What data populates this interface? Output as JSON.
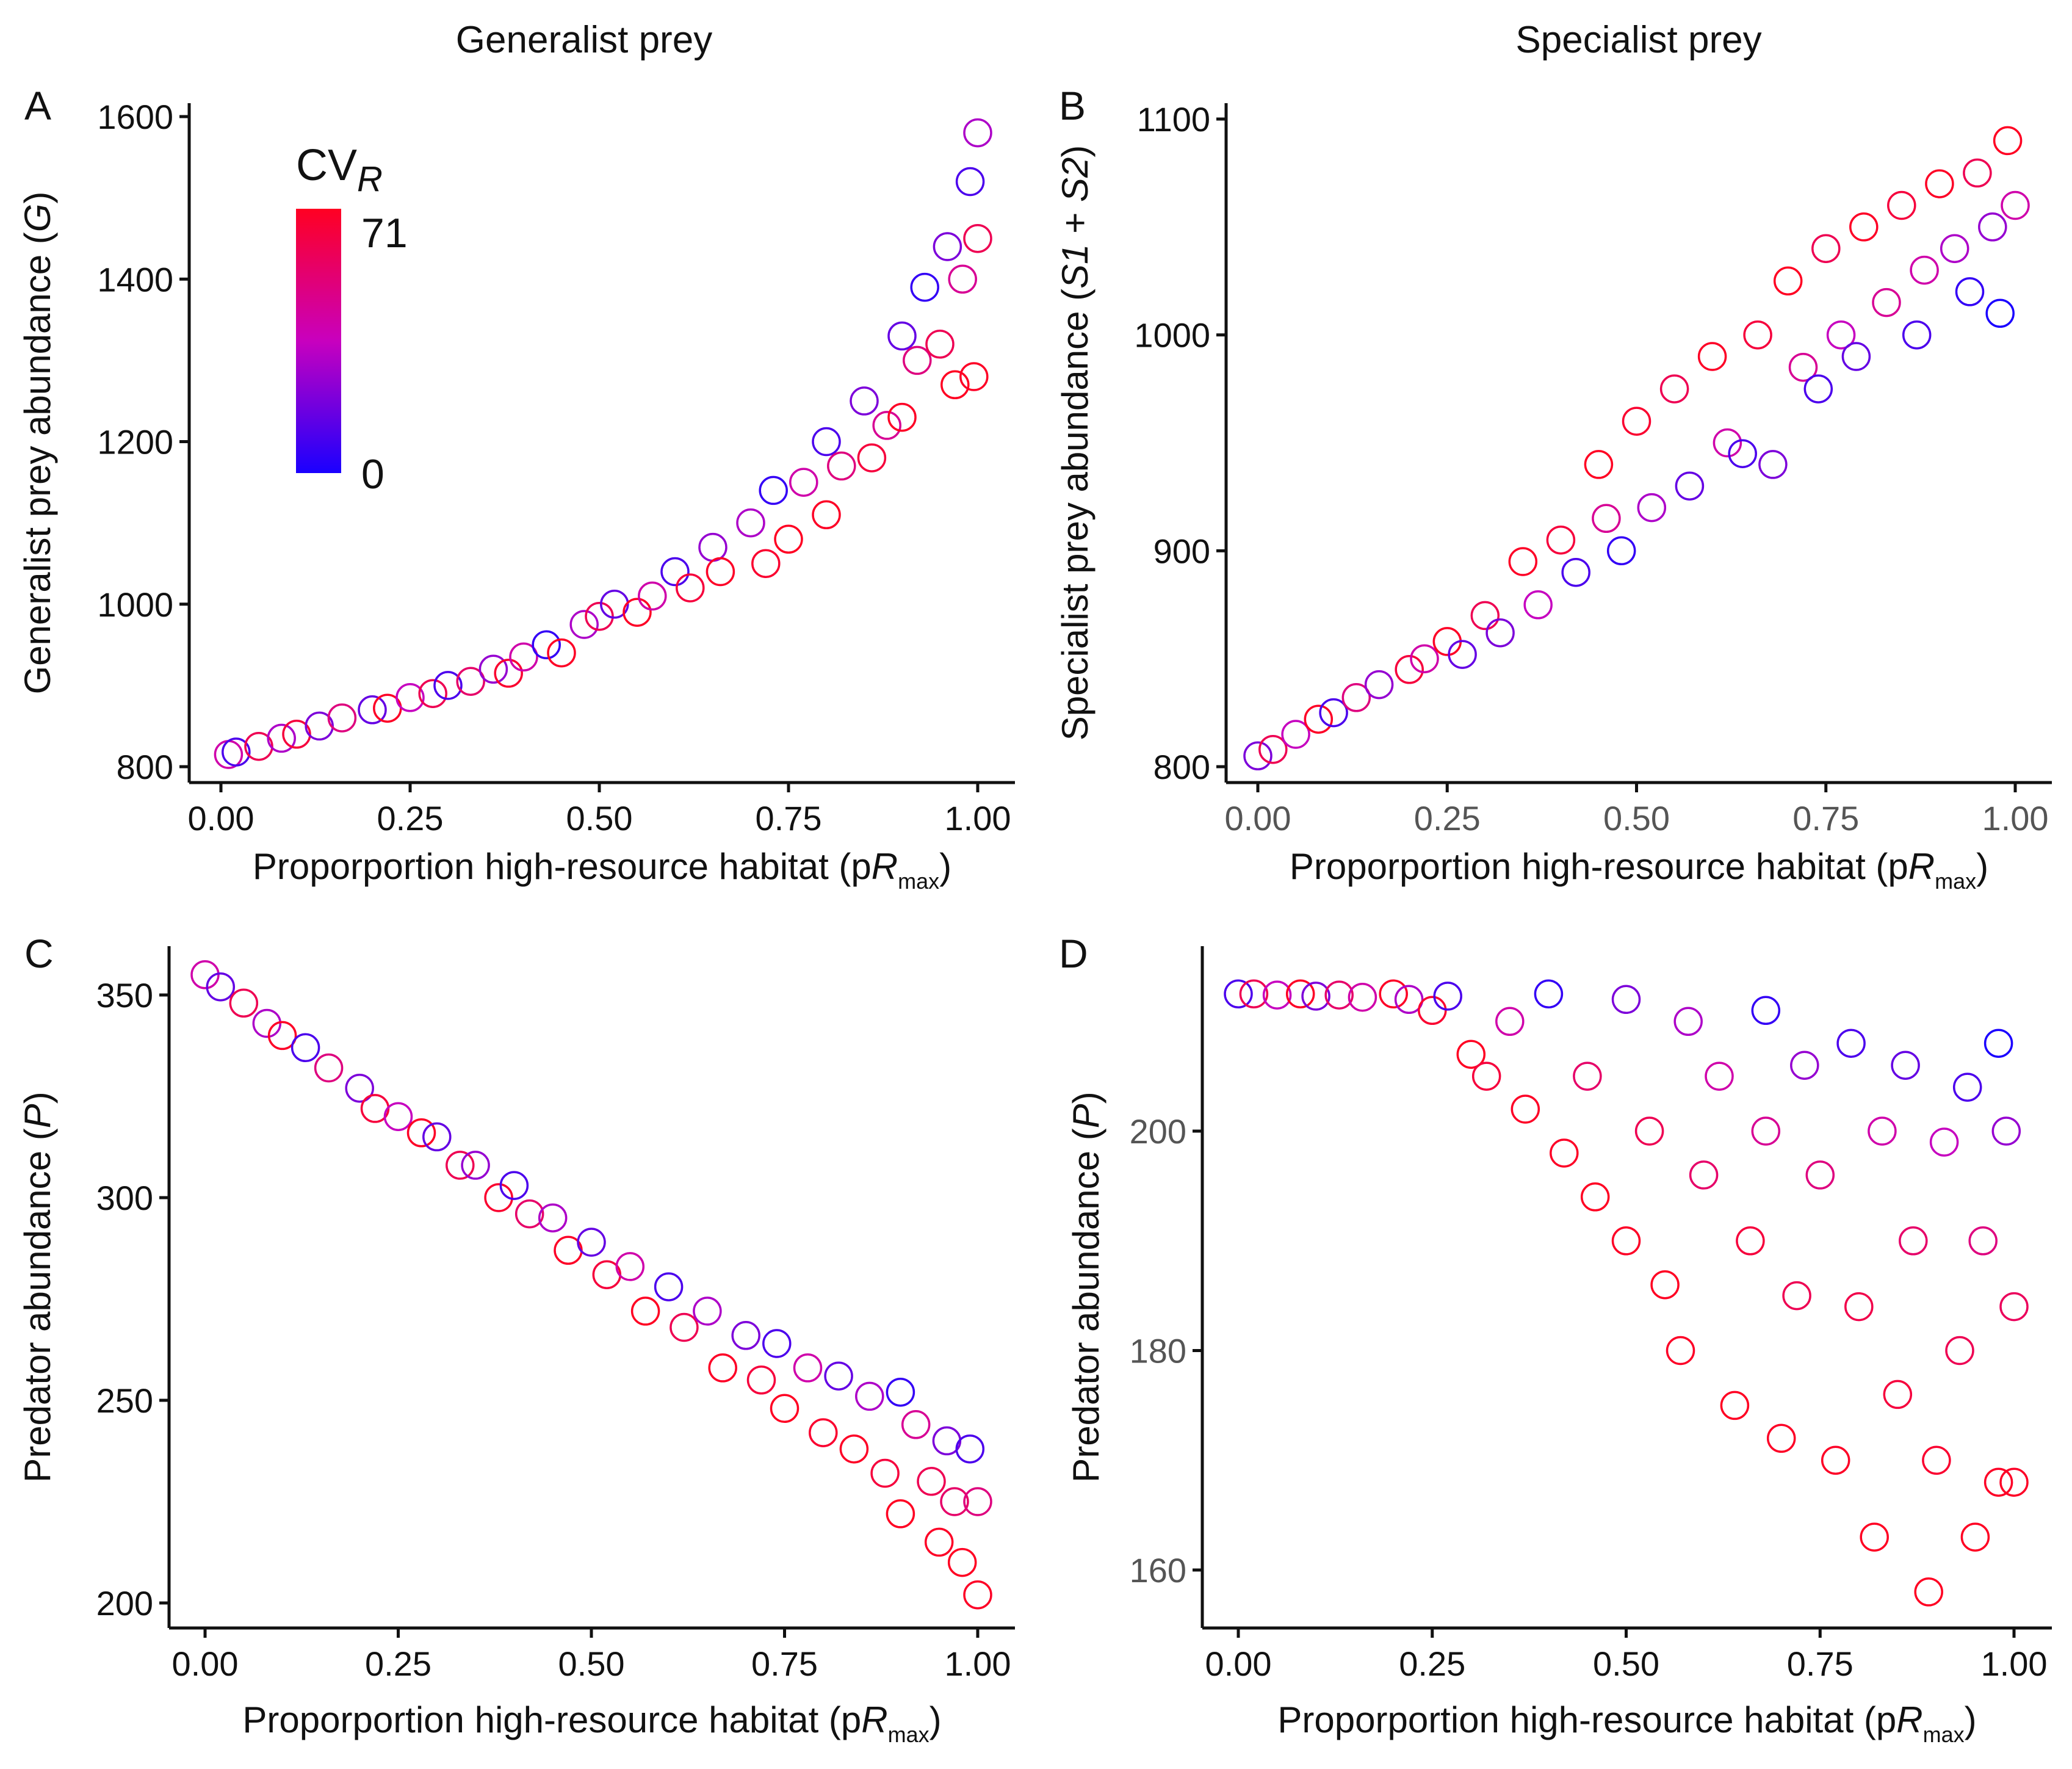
{
  "column_titles": [
    "Generalist prey",
    "Specialist prey"
  ],
  "legend": {
    "title": "CV",
    "title_sub": "R",
    "max_label": "71",
    "min_label": "0",
    "min": 0,
    "max": 71,
    "colors": {
      "low": "#1a00ff",
      "mid": "#c800be",
      "high": "#ff0022"
    }
  },
  "chart_data": [
    {
      "panel": "A",
      "type": "scatter",
      "title": "Generalist prey",
      "xlabel": {
        "prefix": "Proporportion high-resource habitat (p",
        "var": "R",
        "sub": "max",
        "suffix": ")"
      },
      "ylabel": {
        "prefix": "Generalist prey abundance (",
        "var": "G",
        "suffix": ")"
      },
      "xlim": [
        0,
        1
      ],
      "ylim": [
        800,
        1600
      ],
      "xticks": [
        "0.00",
        "0.25",
        "0.50",
        "0.75",
        "1.00"
      ],
      "xtick_values": [
        0,
        0.25,
        0.5,
        0.75,
        1
      ],
      "yticks": [
        "800",
        "1000",
        "1200",
        "1400",
        "1600"
      ],
      "ytick_values": [
        800,
        1000,
        1200,
        1400,
        1600
      ],
      "points_x_y_cv": [
        [
          0.01,
          815,
          40
        ],
        [
          0.02,
          818,
          10
        ],
        [
          0.05,
          825,
          60
        ],
        [
          0.08,
          835,
          30
        ],
        [
          0.1,
          840,
          65
        ],
        [
          0.13,
          850,
          20
        ],
        [
          0.16,
          860,
          50
        ],
        [
          0.2,
          870,
          15
        ],
        [
          0.22,
          872,
          70
        ],
        [
          0.25,
          885,
          35
        ],
        [
          0.28,
          890,
          60
        ],
        [
          0.3,
          900,
          10
        ],
        [
          0.33,
          905,
          55
        ],
        [
          0.36,
          920,
          25
        ],
        [
          0.38,
          915,
          68
        ],
        [
          0.4,
          935,
          40
        ],
        [
          0.43,
          950,
          5
        ],
        [
          0.45,
          940,
          70
        ],
        [
          0.48,
          975,
          30
        ],
        [
          0.5,
          985,
          60
        ],
        [
          0.52,
          1000,
          15
        ],
        [
          0.55,
          990,
          70
        ],
        [
          0.57,
          1010,
          40
        ],
        [
          0.6,
          1040,
          10
        ],
        [
          0.62,
          1020,
          65
        ],
        [
          0.65,
          1070,
          25
        ],
        [
          0.66,
          1040,
          70
        ],
        [
          0.7,
          1100,
          30
        ],
        [
          0.72,
          1050,
          68
        ],
        [
          0.73,
          1140,
          5
        ],
        [
          0.75,
          1080,
          71
        ],
        [
          0.77,
          1150,
          40
        ],
        [
          0.8,
          1200,
          10
        ],
        [
          0.8,
          1110,
          70
        ],
        [
          0.82,
          1170,
          50
        ],
        [
          0.85,
          1250,
          20
        ],
        [
          0.86,
          1180,
          65
        ],
        [
          0.88,
          1220,
          45
        ],
        [
          0.9,
          1330,
          15
        ],
        [
          0.9,
          1230,
          70
        ],
        [
          0.92,
          1300,
          50
        ],
        [
          0.93,
          1390,
          5
        ],
        [
          0.95,
          1320,
          60
        ],
        [
          0.96,
          1440,
          20
        ],
        [
          0.97,
          1270,
          71
        ],
        [
          0.98,
          1400,
          45
        ],
        [
          0.99,
          1520,
          10
        ],
        [
          1.0,
          1580,
          30
        ],
        [
          1.0,
          1450,
          60
        ],
        [
          0.995,
          1280,
          70
        ]
      ]
    },
    {
      "panel": "B",
      "type": "scatter",
      "title": "Specialist prey",
      "xlabel": {
        "prefix": "Proporportion high-resource habitat (p",
        "var": "R",
        "sub": "max",
        "suffix": ")"
      },
      "ylabel": {
        "prefix": "Specialist prey abundance (",
        "var": "S1",
        "mid": " + ",
        "var2": "S2",
        "suffix": ")"
      },
      "xlim": [
        0,
        1
      ],
      "ylim": [
        800,
        1100
      ],
      "xticks": [
        "0.00",
        "0.25",
        "0.50",
        "0.75",
        "1.00"
      ],
      "xtick_values": [
        0,
        0.25,
        0.5,
        0.75,
        1
      ],
      "yticks": [
        "800",
        "900",
        "1000",
        "1100"
      ],
      "ytick_values": [
        800,
        900,
        1000,
        1100
      ],
      "points_x_y_cv": [
        [
          0.0,
          805,
          20
        ],
        [
          0.02,
          808,
          60
        ],
        [
          0.05,
          815,
          35
        ],
        [
          0.08,
          822,
          70
        ],
        [
          0.1,
          825,
          10
        ],
        [
          0.13,
          832,
          50
        ],
        [
          0.16,
          838,
          25
        ],
        [
          0.2,
          845,
          65
        ],
        [
          0.22,
          850,
          40
        ],
        [
          0.25,
          858,
          70
        ],
        [
          0.27,
          852,
          15
        ],
        [
          0.3,
          870,
          60
        ],
        [
          0.32,
          862,
          20
        ],
        [
          0.35,
          895,
          70
        ],
        [
          0.37,
          875,
          35
        ],
        [
          0.4,
          905,
          65
        ],
        [
          0.42,
          890,
          10
        ],
        [
          0.45,
          940,
          71
        ],
        [
          0.46,
          915,
          45
        ],
        [
          0.48,
          900,
          5
        ],
        [
          0.5,
          960,
          68
        ],
        [
          0.52,
          920,
          30
        ],
        [
          0.55,
          975,
          60
        ],
        [
          0.57,
          930,
          15
        ],
        [
          0.6,
          990,
          70
        ],
        [
          0.62,
          950,
          40
        ],
        [
          0.64,
          945,
          10
        ],
        [
          0.66,
          1000,
          65
        ],
        [
          0.68,
          940,
          20
        ],
        [
          0.7,
          1025,
          71
        ],
        [
          0.72,
          985,
          45
        ],
        [
          0.74,
          975,
          10
        ],
        [
          0.75,
          1040,
          60
        ],
        [
          0.77,
          1000,
          35
        ],
        [
          0.79,
          990,
          15
        ],
        [
          0.8,
          1050,
          70
        ],
        [
          0.83,
          1015,
          45
        ],
        [
          0.85,
          1060,
          65
        ],
        [
          0.87,
          1000,
          10
        ],
        [
          0.88,
          1030,
          40
        ],
        [
          0.9,
          1070,
          70
        ],
        [
          0.92,
          1040,
          30
        ],
        [
          0.94,
          1020,
          5
        ],
        [
          0.95,
          1075,
          60
        ],
        [
          0.97,
          1050,
          25
        ],
        [
          0.98,
          1010,
          0
        ],
        [
          0.99,
          1090,
          71
        ],
        [
          1.0,
          1060,
          40
        ]
      ]
    },
    {
      "panel": "C",
      "type": "scatter",
      "xlabel": {
        "prefix": "Proporportion high-resource habitat (p",
        "var": "R",
        "sub": "max",
        "suffix": ")"
      },
      "ylabel": {
        "prefix": "Predator abundance (",
        "var": "P",
        "suffix": ")"
      },
      "xlim": [
        0,
        1
      ],
      "ylim": [
        200,
        350
      ],
      "xticks": [
        "0.00",
        "0.25",
        "0.50",
        "0.75",
        "1.00"
      ],
      "xtick_values": [
        0,
        0.25,
        0.5,
        0.75,
        1
      ],
      "yticks": [
        "200",
        "250",
        "300",
        "350"
      ],
      "ytick_values": [
        200,
        250,
        300,
        350
      ],
      "points_x_y_cv": [
        [
          0.0,
          355,
          40
        ],
        [
          0.02,
          352,
          15
        ],
        [
          0.05,
          348,
          60
        ],
        [
          0.08,
          343,
          30
        ],
        [
          0.1,
          340,
          70
        ],
        [
          0.13,
          337,
          10
        ],
        [
          0.16,
          332,
          50
        ],
        [
          0.2,
          327,
          20
        ],
        [
          0.22,
          322,
          65
        ],
        [
          0.25,
          320,
          35
        ],
        [
          0.28,
          316,
          70
        ],
        [
          0.3,
          315,
          15
        ],
        [
          0.33,
          308,
          60
        ],
        [
          0.35,
          308,
          25
        ],
        [
          0.38,
          300,
          68
        ],
        [
          0.4,
          303,
          10
        ],
        [
          0.42,
          296,
          55
        ],
        [
          0.45,
          295,
          30
        ],
        [
          0.47,
          287,
          70
        ],
        [
          0.5,
          289,
          15
        ],
        [
          0.52,
          281,
          65
        ],
        [
          0.55,
          283,
          40
        ],
        [
          0.57,
          272,
          71
        ],
        [
          0.6,
          278,
          10
        ],
        [
          0.62,
          268,
          60
        ],
        [
          0.65,
          272,
          30
        ],
        [
          0.67,
          258,
          70
        ],
        [
          0.7,
          266,
          20
        ],
        [
          0.72,
          255,
          65
        ],
        [
          0.74,
          264,
          10
        ],
        [
          0.75,
          248,
          71
        ],
        [
          0.78,
          258,
          40
        ],
        [
          0.8,
          242,
          68
        ],
        [
          0.82,
          256,
          15
        ],
        [
          0.84,
          238,
          70
        ],
        [
          0.86,
          251,
          30
        ],
        [
          0.88,
          232,
          65
        ],
        [
          0.9,
          252,
          5
        ],
        [
          0.9,
          222,
          71
        ],
        [
          0.92,
          244,
          45
        ],
        [
          0.94,
          230,
          60
        ],
        [
          0.95,
          215,
          70
        ],
        [
          0.96,
          240,
          20
        ],
        [
          0.97,
          225,
          55
        ],
        [
          0.98,
          210,
          71
        ],
        [
          0.99,
          238,
          10
        ],
        [
          1.0,
          202,
          70
        ],
        [
          1.0,
          225,
          50
        ]
      ]
    },
    {
      "panel": "D",
      "type": "scatter",
      "xlabel": {
        "prefix": "Proporportion high-resource habitat (p",
        "var": "R",
        "sub": "max",
        "suffix": ")"
      },
      "ylabel": {
        "prefix": "Predator abundance (",
        "var": "P",
        "suffix": ")"
      },
      "xlim": [
        0,
        1
      ],
      "ylim": [
        155,
        217
      ],
      "xticks": [
        "0.00",
        "0.25",
        "0.50",
        "0.75",
        "1.00"
      ],
      "xtick_values": [
        0,
        0.25,
        0.5,
        0.75,
        1
      ],
      "yticks": [
        "160",
        "180",
        "200"
      ],
      "ytick_values": [
        160,
        180,
        200
      ],
      "points_x_y_cv": [
        [
          0.0,
          212.5,
          10
        ],
        [
          0.02,
          212.5,
          60
        ],
        [
          0.05,
          212.4,
          35
        ],
        [
          0.08,
          212.5,
          70
        ],
        [
          0.1,
          212.3,
          20
        ],
        [
          0.13,
          212.4,
          55
        ],
        [
          0.16,
          212.2,
          40
        ],
        [
          0.2,
          212.5,
          70
        ],
        [
          0.22,
          212,
          30
        ],
        [
          0.25,
          211,
          68
        ],
        [
          0.27,
          212.3,
          10
        ],
        [
          0.3,
          207,
          71
        ],
        [
          0.32,
          205,
          65
        ],
        [
          0.35,
          210,
          40
        ],
        [
          0.37,
          202,
          70
        ],
        [
          0.4,
          212.5,
          5
        ],
        [
          0.42,
          198,
          70
        ],
        [
          0.45,
          205,
          55
        ],
        [
          0.46,
          194,
          71
        ],
        [
          0.5,
          212,
          20
        ],
        [
          0.5,
          190,
          70
        ],
        [
          0.53,
          200,
          60
        ],
        [
          0.55,
          186,
          71
        ],
        [
          0.57,
          180,
          70
        ],
        [
          0.58,
          210,
          30
        ],
        [
          0.6,
          196,
          55
        ],
        [
          0.62,
          205,
          40
        ],
        [
          0.64,
          175,
          71
        ],
        [
          0.66,
          190,
          65
        ],
        [
          0.68,
          211,
          5
        ],
        [
          0.68,
          200,
          45
        ],
        [
          0.7,
          172,
          70
        ],
        [
          0.72,
          185,
          60
        ],
        [
          0.73,
          206,
          25
        ],
        [
          0.75,
          196,
          50
        ],
        [
          0.77,
          170,
          70
        ],
        [
          0.79,
          208,
          10
        ],
        [
          0.8,
          184,
          62
        ],
        [
          0.82,
          163,
          71
        ],
        [
          0.83,
          200,
          40
        ],
        [
          0.85,
          176,
          65
        ],
        [
          0.86,
          206,
          15
        ],
        [
          0.87,
          190,
          55
        ],
        [
          0.89,
          158,
          71
        ],
        [
          0.9,
          170,
          68
        ],
        [
          0.91,
          199,
          35
        ],
        [
          0.93,
          180,
          60
        ],
        [
          0.94,
          204,
          10
        ],
        [
          0.95,
          163,
          71
        ],
        [
          0.96,
          190,
          50
        ],
        [
          0.98,
          208,
          0
        ],
        [
          0.98,
          168,
          70
        ],
        [
          0.99,
          200,
          25
        ],
        [
          1.0,
          184,
          58
        ],
        [
          1.0,
          168,
          70
        ]
      ]
    }
  ]
}
